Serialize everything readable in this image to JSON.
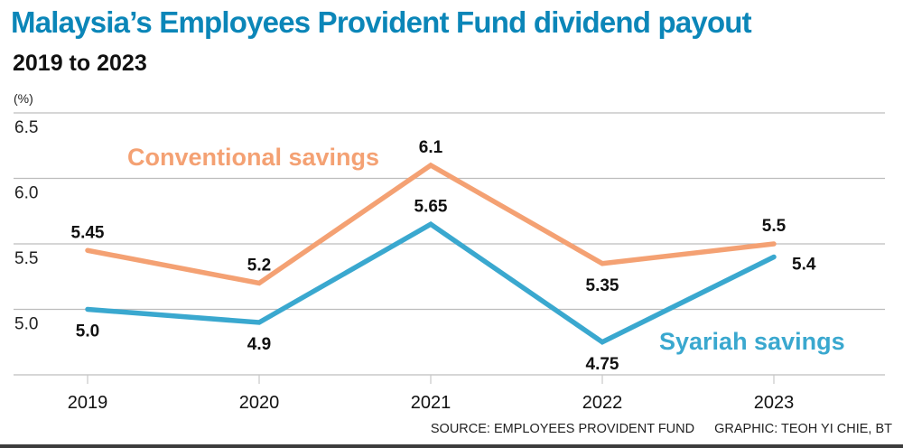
{
  "header": {
    "title": "Malaysia’s Employees Provident Fund dividend payout",
    "subtitle": "2019 to 2023",
    "unit_label": "(%)"
  },
  "footer": {
    "source": "SOURCE: EMPLOYEES PROVIDENT FUND",
    "credit": "GRAPHIC: TEOH YI CHIE, BT"
  },
  "chart_data": {
    "type": "line",
    "title": "Malaysia’s Employees Provident Fund dividend payout",
    "subtitle": "2019 to 2023",
    "xlabel": "",
    "ylabel": "(%)",
    "categories": [
      "2019",
      "2020",
      "2021",
      "2022",
      "2023"
    ],
    "ylim": [
      4.5,
      6.5
    ],
    "yticks": [
      5.0,
      5.5,
      6.0,
      6.5
    ],
    "ytick_labels": [
      "5.0",
      "5.5",
      "6.0",
      "6.5"
    ],
    "grid": true,
    "series": [
      {
        "name": "Conventional savings",
        "color": "#f4a173",
        "values": [
          5.45,
          5.2,
          6.1,
          5.35,
          5.5
        ],
        "labels": [
          "5.45",
          "5.2",
          "6.1",
          "5.35",
          "5.5"
        ],
        "label_positions": [
          "above",
          "above",
          "above",
          "below",
          "above"
        ]
      },
      {
        "name": "Syariah savings",
        "color": "#3aa8cf",
        "values": [
          5.0,
          4.9,
          5.65,
          4.75,
          5.4
        ],
        "labels": [
          "5.0",
          "4.9",
          "5.65",
          "4.75",
          "5.4"
        ],
        "label_positions": [
          "below",
          "below",
          "above",
          "below",
          "right"
        ]
      }
    ],
    "legend": "inline-labels"
  }
}
